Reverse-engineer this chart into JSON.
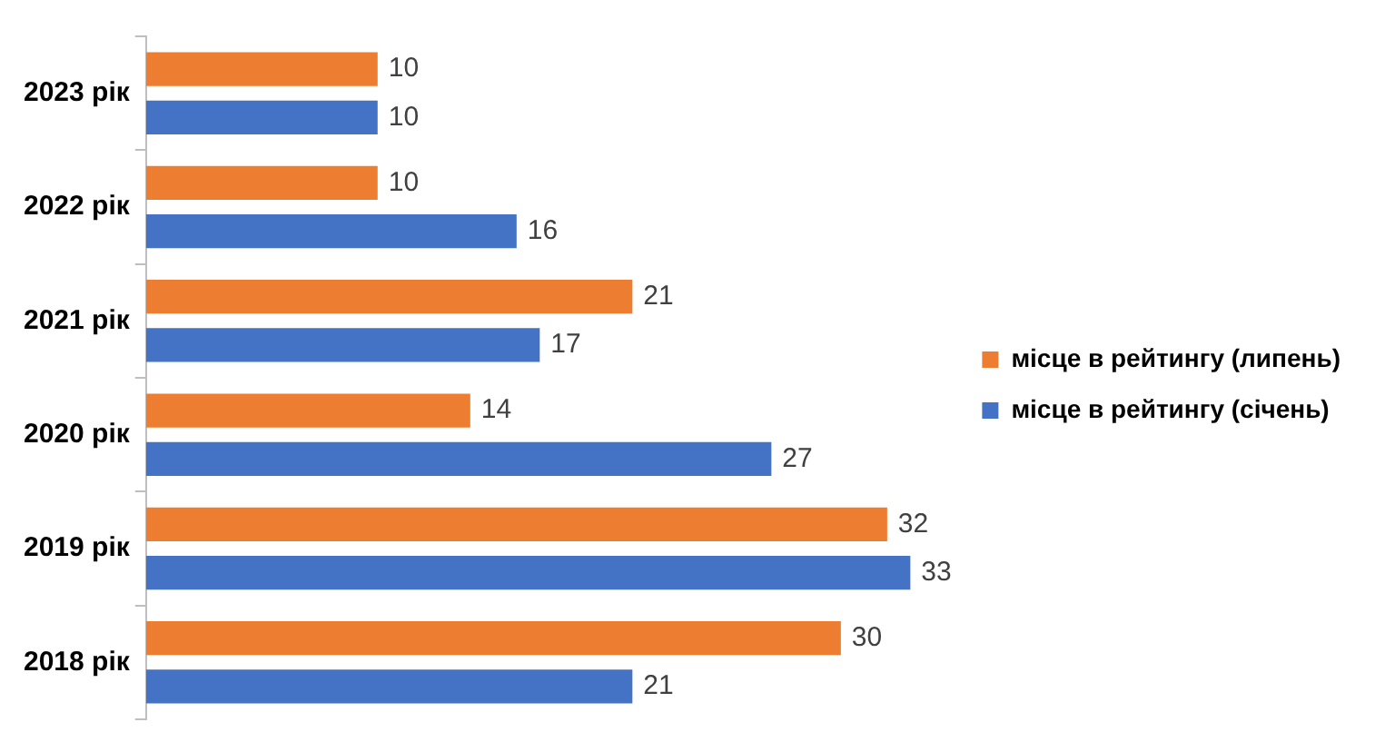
{
  "chart_data": {
    "type": "bar",
    "orientation": "horizontal",
    "categories": [
      "2023 рік",
      "2022 рік",
      "2021 рік",
      "2020 рік",
      "2019 рік",
      "2018 рік"
    ],
    "series": [
      {
        "name": "місце в рейтингу (липень)",
        "color": "#ed7d31",
        "values": [
          10,
          10,
          21,
          14,
          32,
          30
        ]
      },
      {
        "name": "місце в рейтингу (січень)",
        "color": "#4472c4",
        "values": [
          10,
          16,
          17,
          27,
          33,
          21
        ]
      }
    ],
    "relative": false,
    "data_labels": true,
    "grid": false,
    "legend": "right"
  }
}
